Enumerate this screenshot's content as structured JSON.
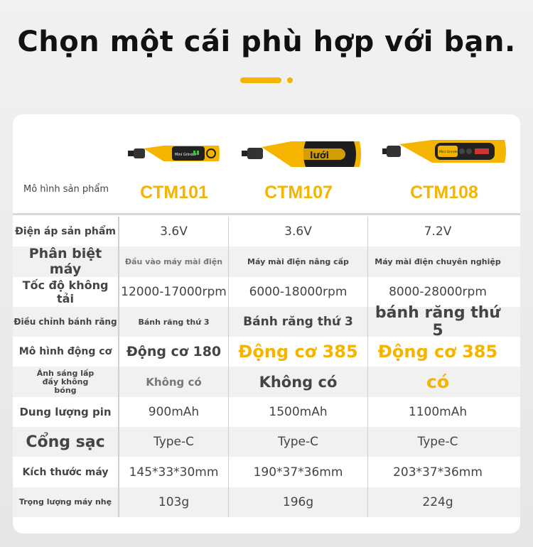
{
  "title": "Chọn một cái phù hợp với bạn.",
  "colors": {
    "accent": "#f5b400"
  },
  "header": {
    "label": "Mô hình sản phẩm",
    "models": [
      "CTM101",
      "CTM107",
      "CTM108"
    ],
    "tool_text": [
      "Mini Grinder",
      "lưới",
      "Mini Grinder"
    ]
  },
  "rows": [
    {
      "label": "Điện áp sản phẩm",
      "values": [
        "3.6V",
        "3.6V",
        "7.2V"
      ]
    },
    {
      "label": "Phân biệt máy",
      "values": [
        "Đầu vào máy mài điện",
        "Máy mài điện nâng cấp",
        "Máy mài điện chuyên nghiệp"
      ]
    },
    {
      "label": "Tốc độ không tải",
      "values": [
        "12000-17000rpm",
        "6000-18000rpm",
        "8000-28000rpm"
      ]
    },
    {
      "label": "Điều chỉnh bánh răng",
      "values": [
        "Bánh răng thứ 3",
        "Bánh răng thứ 3",
        "bánh răng thứ 5"
      ]
    },
    {
      "label": "Mô hình động cơ",
      "values": [
        "Động cơ 180",
        "Động cơ 385",
        "Động cơ 385"
      ]
    },
    {
      "label": "Ánh sáng lấp đầy không bóng",
      "values": [
        "Không có",
        "Không có",
        "có"
      ]
    },
    {
      "label": "Dung lượng pin",
      "values": [
        "900mAh",
        "1500mAh",
        "1100mAh"
      ]
    },
    {
      "label": "Cổng sạc",
      "values": [
        "Type-C",
        "Type-C",
        "Type-C"
      ]
    },
    {
      "label": "Kích thước máy",
      "values": [
        "145*33*30mm",
        "190*37*36mm",
        "203*37*36mm"
      ]
    },
    {
      "label": "Trọng lượng máy nhẹ",
      "values": [
        "103g",
        "196g",
        "224g"
      ]
    }
  ]
}
